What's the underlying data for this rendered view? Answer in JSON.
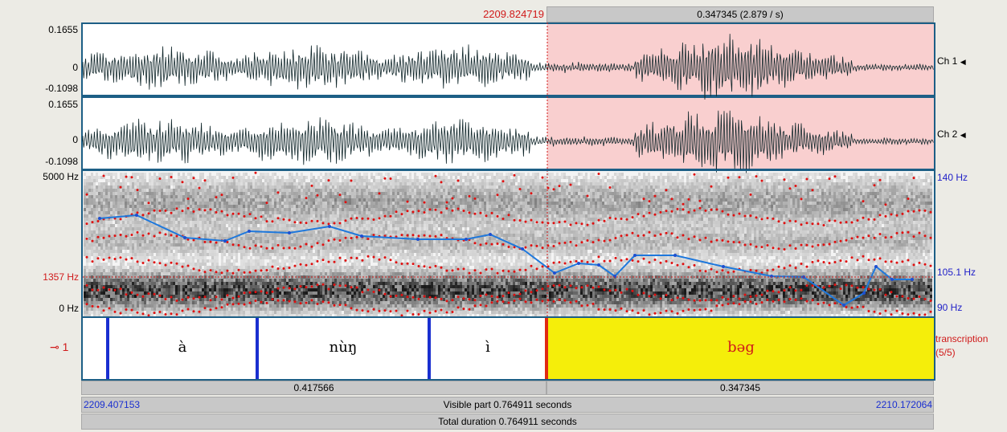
{
  "selection": {
    "start_time": "2209.824719",
    "duration_label": "0.347345 (2.879 / s)"
  },
  "waveform": {
    "ch1": {
      "max": "0.1655",
      "zero": "0",
      "min": "-0.1098",
      "label": "Ch 1"
    },
    "ch2": {
      "max": "0.1655",
      "zero": "0",
      "min": "-0.1098",
      "label": "Ch 2"
    }
  },
  "spectrogram": {
    "freq_max": "5000 Hz",
    "freq_cursor": "1357 Hz",
    "freq_min": "0 Hz",
    "pitch_max": "140 Hz",
    "pitch_cursor": "105.1 Hz",
    "pitch_min": "90 Hz"
  },
  "tier": {
    "number": "1",
    "name": "transcription",
    "count": "(5/5)",
    "intervals": [
      "à",
      "nùŋ",
      "ì",
      "bəg"
    ]
  },
  "durations": {
    "left": "0.417566",
    "right": "0.347345"
  },
  "footer": {
    "visible_start": "2209.407153",
    "visible_part": "Visible part 0.764911 seconds",
    "visible_end": "2210.172064",
    "total_duration": "Total duration 0.764911 seconds"
  },
  "colors": {
    "selection_pink": "#f9cfcf",
    "selected_interval_yellow": "#f5ee0a",
    "pitch_line": "#1e78dc",
    "formant_dot": "#e01010",
    "panel_border": "#1d5f86"
  }
}
